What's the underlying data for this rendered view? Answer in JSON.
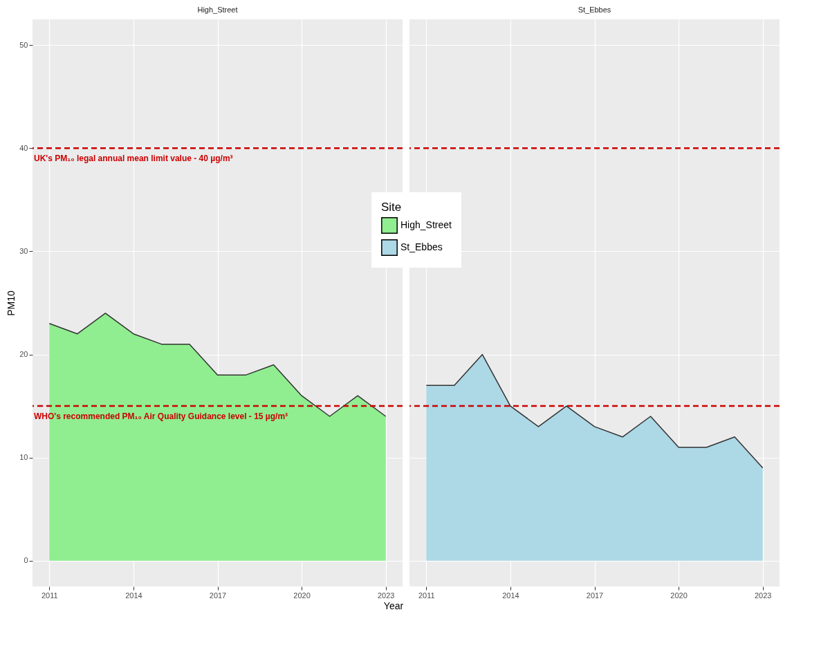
{
  "chart_data": [
    {
      "type": "area",
      "title": "High_Street",
      "xlabel": "Year",
      "ylabel": "PM10",
      "legend_title": "Site",
      "legend": "right",
      "grid": true,
      "x": [
        2011,
        2012,
        2013,
        2014,
        2015,
        2016,
        2017,
        2018,
        2019,
        2020,
        2021,
        2022,
        2023
      ],
      "series": [
        {
          "name": "High_Street",
          "color": "#90ee90",
          "values": [
            23,
            22,
            24,
            22,
            21,
            21,
            18,
            18,
            19,
            16,
            14,
            16,
            14
          ]
        }
      ],
      "xlim": [
        2010.4,
        2023.6
      ],
      "ylim": [
        -2.5,
        52.5
      ],
      "xticks": [
        2011,
        2014,
        2017,
        2020,
        2023
      ],
      "yticks": [
        0,
        10,
        20,
        30,
        40,
        50
      ],
      "ref_lines": [
        {
          "axis": "y",
          "value": 40,
          "label": "UK's PM₁₀ legal annual mean limit value - 40 µg/m³",
          "color": "#cc0000",
          "line_style": "dashed"
        },
        {
          "axis": "y",
          "value": 15,
          "label": "WHO's recommended PM₁₀ Air Quality Guidance level - 15 µg/m³",
          "color": "#cc0000",
          "line_style": "dashed"
        }
      ]
    },
    {
      "type": "area",
      "title": "St_Ebbes",
      "grid": true,
      "tick_labels": "x",
      "x": [
        2011,
        2012,
        2013,
        2014,
        2015,
        2016,
        2017,
        2018,
        2019,
        2020,
        2021,
        2022,
        2023
      ],
      "series": [
        {
          "name": "St_Ebbes",
          "color": "#add8e6",
          "values": [
            17,
            17,
            20,
            15,
            13,
            15,
            13,
            12,
            14,
            11,
            11,
            12,
            9
          ]
        }
      ],
      "xlim": [
        2010.4,
        2023.6
      ],
      "ylim": [
        -2.5,
        52.5
      ],
      "xticks": [
        2011,
        2014,
        2017,
        2020,
        2023
      ],
      "yticks": [
        0,
        10,
        20,
        30,
        40,
        50
      ],
      "ref_lines": [
        {
          "axis": "y",
          "value": 40,
          "color": "#cc0000",
          "line_style": "dashed"
        },
        {
          "axis": "y",
          "value": 15,
          "color": "#cc0000",
          "line_style": "dashed"
        }
      ]
    }
  ]
}
